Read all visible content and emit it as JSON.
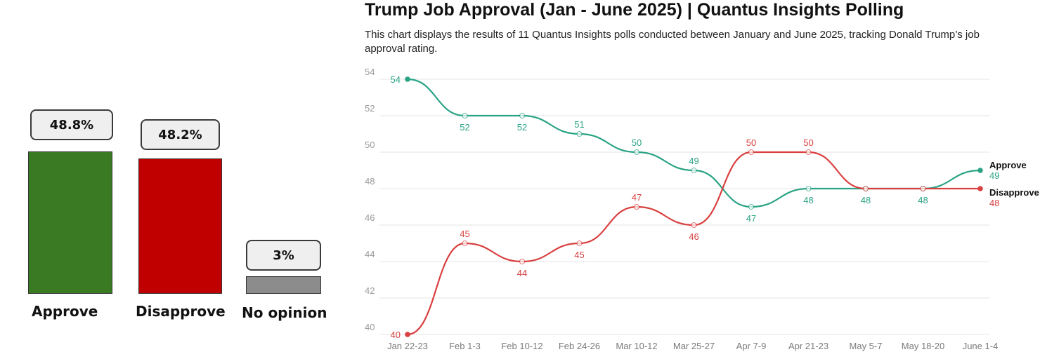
{
  "summary": {
    "bars": [
      {
        "label": "Approve",
        "value": 48.8,
        "display": "48.8%",
        "color": "#3a7a22"
      },
      {
        "label": "Disapprove",
        "value": 48.2,
        "display": "48.2%",
        "color": "#c00000"
      },
      {
        "label": "No opinion",
        "value": 3,
        "display": "3%",
        "color": "#8c8c8c"
      }
    ]
  },
  "chart_data": [
    {
      "type": "bar",
      "categories": [
        "Approve",
        "Disapprove",
        "No opinion"
      ],
      "values": [
        48.8,
        48.2,
        3
      ],
      "data_labels": [
        "48.8%",
        "48.2%",
        "3%"
      ],
      "colors": [
        "#3a7a22",
        "#c00000",
        "#8c8c8c"
      ]
    },
    {
      "type": "line",
      "title": "Trump Job Approval (Jan - June 2025) | Quantus Insights Polling",
      "subtitle": "This chart displays the results of 11 Quantus Insights polls conducted between January and June 2025, tracking Donald Trump’s job approval rating.",
      "categories": [
        "Jan 22-23",
        "Feb 1-3",
        "Feb 10-12",
        "Feb 24-26",
        "Mar 10-12",
        "Mar 25-27",
        "Apr 7-9",
        "Apr 21-23",
        "May 5-7",
        "May 18-20",
        "June 1-4"
      ],
      "series": [
        {
          "name": "Approve",
          "values": [
            54,
            52,
            52,
            51,
            50,
            49,
            47,
            48,
            48,
            48,
            49
          ],
          "color": "#2aa385"
        },
        {
          "name": "Disapprove",
          "values": [
            40,
            45,
            44,
            45,
            47,
            46,
            50,
            50,
            48,
            48,
            48
          ],
          "color": "#d94040"
        }
      ],
      "yticks": [
        40,
        42,
        44,
        46,
        48,
        50,
        52,
        54
      ],
      "ylim": [
        40,
        54
      ],
      "grid": true,
      "legend": "end-labels"
    }
  ]
}
